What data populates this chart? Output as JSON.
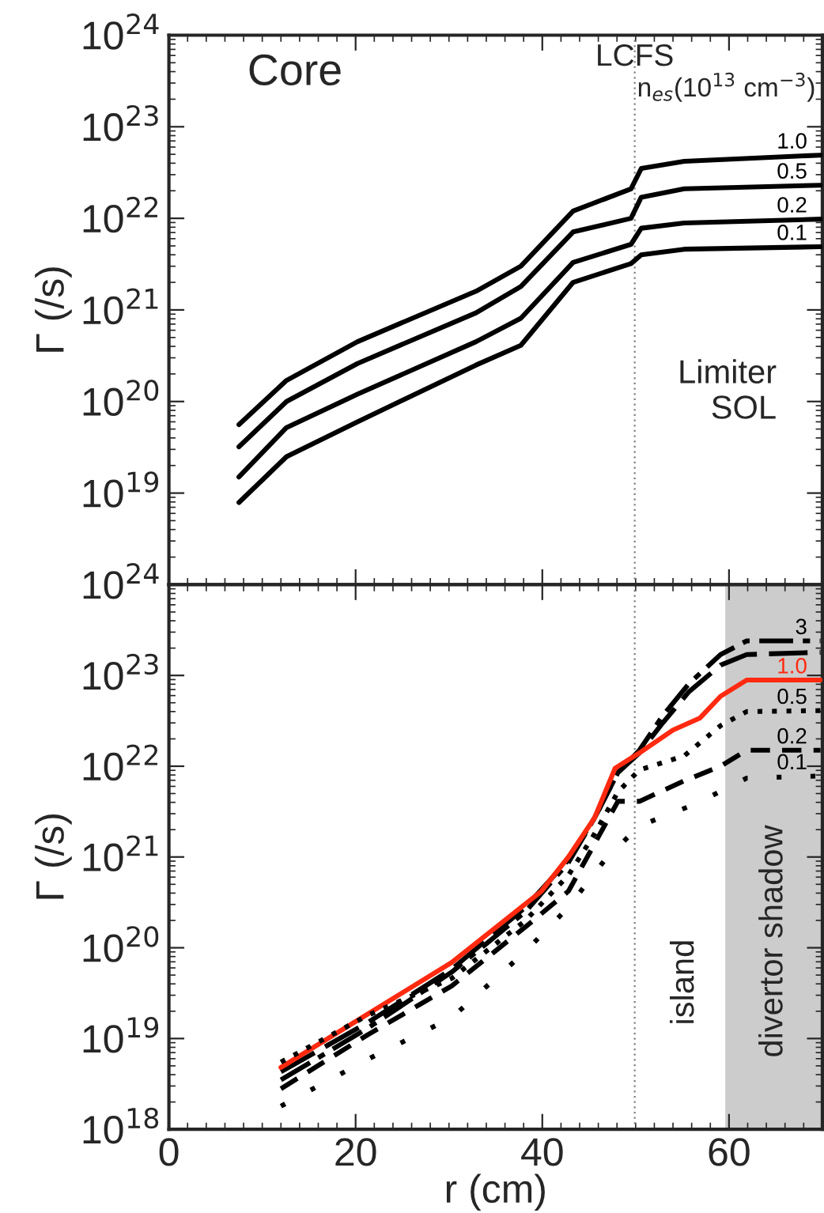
{
  "chart_data": [
    {
      "type": "line",
      "ylabel": "Γ (/s)",
      "log": true,
      "grid": false,
      "legend": false,
      "tick_labels": "y",
      "xlim": [
        0,
        70
      ],
      "xticks": [
        0,
        20,
        40,
        60
      ],
      "ylim": [
        1e+18,
        1e+24
      ],
      "yticks": [
        {
          "value": 1e+18,
          "label": null
        },
        {
          "value": 1e+19,
          "label": "10$^{19}$"
        },
        {
          "value": 1e+20,
          "label": "10$^{20}$"
        },
        {
          "value": 1e+21,
          "label": "10$^{21}$"
        },
        {
          "value": 1e+22,
          "label": "10$^{22}$"
        },
        {
          "value": 1e+23,
          "label": "10$^{23}$"
        },
        {
          "value": 1e+24,
          "label": "10$^{24}$"
        }
      ],
      "annotations": [
        "Core",
        "n$_{es}$(10$^{13}$ cm$^{−3}$)",
        "Limiter\nSOL"
      ],
      "ref_lines": [
        {
          "axis": "x",
          "value": 49.9,
          "label": "LCFS",
          "color": "#808080",
          "line_style": "dotted"
        }
      ],
      "x": [
        7.5,
        12.6,
        20.2,
        32.9,
        37.7,
        43.3,
        49.5,
        50.6,
        55.2,
        69.8
      ],
      "series": [
        {
          "name": "1.0",
          "color": "#000000",
          "line_style": "solid",
          "values": [
            5.6e+19,
            1.7e+20,
            4.5e+20,
            1.6e+21,
            3e+21,
            1.2e+22,
            2.1e+22,
            3.5e+22,
            4.2e+22,
            4.9e+22
          ]
        },
        {
          "name": "0.5",
          "color": "#000000",
          "line_style": "solid",
          "values": [
            3.2e+19,
            1e+20,
            2.6e+20,
            9.3e+20,
            1.8e+21,
            7.1e+21,
            1e+22,
            1.7e+22,
            2.1e+22,
            2.3e+22
          ]
        },
        {
          "name": "0.2",
          "color": "#000000",
          "line_style": "solid",
          "values": [
            1.5e+19,
            5.2e+19,
            1.2e+20,
            4.5e+20,
            8.1e+20,
            3.3e+21,
            5.2e+21,
            7.8e+21,
            8.9e+21,
            9.8e+21
          ]
        },
        {
          "name": "0.1",
          "color": "#000000",
          "line_style": "solid",
          "values": [
            7.9e+18,
            2.5e+19,
            6e+19,
            2.5e+20,
            4.1e+20,
            2e+21,
            3.2e+21,
            4e+21,
            4.6e+21,
            4.9e+21
          ]
        }
      ]
    },
    {
      "type": "line",
      "xlabel": "r (cm)",
      "ylabel": "Γ (/s)",
      "log": true,
      "grid": false,
      "legend": false,
      "xlim": [
        0,
        70
      ],
      "xticks": [
        0,
        20,
        40,
        60
      ],
      "ylim": [
        1e+18,
        1e+24
      ],
      "yticks": [
        {
          "value": 1e+18,
          "label": "10$^{18}$"
        },
        {
          "value": 1e+19,
          "label": "10$^{19}$"
        },
        {
          "value": 1e+20,
          "label": "10$^{20}$"
        },
        {
          "value": 1e+21,
          "label": "10$^{21}$"
        },
        {
          "value": 1e+22,
          "label": "10$^{22}$"
        },
        {
          "value": 1e+23,
          "label": "10$^{23}$"
        },
        {
          "value": 1e+24,
          "label": "10$^{24}$"
        }
      ],
      "annotations": [
        "island"
      ],
      "ref_lines": [
        {
          "axis": "x",
          "value": 49.9,
          "color": "#808080",
          "line_style": "dotted"
        }
      ],
      "bands": [
        {
          "axis": "x",
          "from": 59.6,
          "to": 70,
          "label": "divertor shadow",
          "color": "#cccccc"
        }
      ],
      "series": [
        {
          "name": "3",
          "color": "#000000",
          "line_style": "dashdot",
          "x": [
            12.0,
            21.3,
            30.3,
            38.2,
            42.8,
            45.6,
            48.1,
            50.4,
            52.9,
            55.7,
            59.1,
            61.9,
            69.8
          ],
          "values": [
            3.5e+18,
            1.3e+19,
            5.4e+19,
            2.5e+20,
            8.7e+20,
            2.7e+21,
            8.5e+21,
            1.5e+22,
            3.6e+22,
            8.1e+22,
            1.7e+23,
            2.4e+23,
            2.4e+23
          ]
        },
        {
          "color": "#000000",
          "line_style": "longdash",
          "x": [
            12.0,
            21.3,
            30.3,
            38.2,
            42.8,
            45.6,
            48.1,
            50.4,
            52.9,
            55.7,
            59.1,
            61.9,
            69.8
          ],
          "values": [
            4.3e+18,
            1.5e+19,
            5.8e+19,
            2.8e+20,
            9.3e+20,
            2.7e+21,
            8.5e+21,
            1.4e+22,
            3e+22,
            6.6e+22,
            1.3e+23,
            1.7e+23,
            1.8e+23
          ]
        },
        {
          "name": "1.0",
          "color": "#ff2a10",
          "line_style": "solid",
          "x": [
            12.0,
            30.3,
            39.9,
            42.8,
            45.6,
            47.8,
            50.4,
            54.0,
            56.9,
            59.1,
            61.9,
            69.8
          ],
          "values": [
            4.8e+18,
            6.9e+19,
            4.2e+20,
            1e+21,
            2.7e+21,
            9.5e+21,
            1.4e+22,
            2.5e+22,
            3.4e+22,
            5.9e+22,
            8.9e+22,
            8.9e+22
          ]
        },
        {
          "name": "0.5",
          "color": "#000000",
          "line_style": "dotted",
          "x": [
            12.0,
            21.3,
            30.3,
            38.2,
            42.8,
            45.6,
            48.1,
            50.4,
            55.2,
            59.1,
            61.9,
            69.8
          ],
          "values": [
            5.5e+18,
            1.8e+19,
            4.6e+19,
            2e+20,
            6.3e+20,
            1.8e+21,
            5.2e+21,
            9.1e+21,
            1.3e+22,
            2.8e+22,
            4e+22,
            4.1e+22
          ]
        },
        {
          "name": "0.2",
          "color": "#000000",
          "line_style": "dashed",
          "x": [
            12.0,
            21.3,
            30.3,
            38.2,
            42.8,
            45.6,
            48.1,
            50.4,
            55.2,
            59.1,
            61.9,
            69.8
          ],
          "values": [
            2.8e+18,
            1.1e+19,
            3.8e+19,
            1.7e+20,
            4.2e+20,
            1.4e+21,
            4.1e+21,
            4.1e+21,
            6.9e+21,
            1e+22,
            1.5e+22,
            1.5e+22
          ]
        },
        {
          "name": "0.1",
          "color": "#000000",
          "line_style": "sparse_dotted",
          "x": [
            12.0,
            21.3,
            30.3,
            38.2,
            42.8,
            46.7,
            50.4,
            56.3,
            61.9,
            69.8
          ],
          "values": [
            1.8e+18,
            5.9e+18,
            1.7e+19,
            9.1e+19,
            2.8e+20,
            9.3e+20,
            2.2e+21,
            3.8e+21,
            7.4e+21,
            7.8e+21
          ]
        }
      ]
    }
  ]
}
